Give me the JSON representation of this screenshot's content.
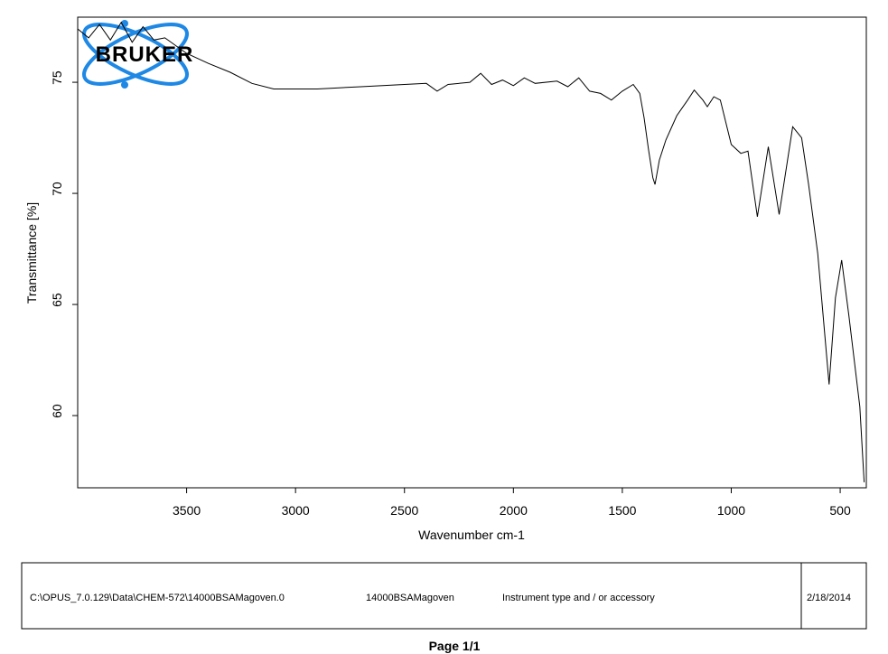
{
  "chart_data": {
    "type": "line",
    "x_label": "Wavenumber cm-1",
    "y_label": "Transmittance [%]",
    "xlim": [
      4000,
      380
    ],
    "ylim": [
      56.75,
      77.93
    ],
    "xticks": [
      3500,
      3000,
      2500,
      2000,
      1500,
      1000,
      500
    ],
    "yticks": [
      60,
      65,
      70,
      75
    ],
    "reverse_x": true,
    "grid": false,
    "series": [
      {
        "color": "#000000",
        "x": [
          4000,
          3950,
          3900,
          3850,
          3800,
          3750,
          3700,
          3650,
          3600,
          3500,
          3400,
          3300,
          3200,
          3100,
          3000,
          2900,
          2800,
          2700,
          2600,
          2500,
          2400,
          2350,
          2300,
          2200,
          2150,
          2100,
          2050,
          2000,
          1950,
          1900,
          1800,
          1750,
          1700,
          1650,
          1600,
          1550,
          1500,
          1450,
          1420,
          1400,
          1380,
          1360,
          1350,
          1330,
          1300,
          1250,
          1200,
          1170,
          1130,
          1110,
          1080,
          1050,
          1000,
          956,
          923,
          880,
          830,
          780,
          718,
          677,
          645,
          603,
          551,
          522,
          493,
          460,
          410,
          390
        ],
        "values": [
          77.4,
          77.0,
          77.6,
          76.9,
          77.7,
          76.8,
          77.5,
          76.9,
          77.0,
          76.3,
          75.85,
          75.45,
          74.95,
          74.7,
          74.7,
          74.7,
          74.75,
          74.8,
          74.85,
          74.9,
          74.95,
          74.6,
          74.9,
          75.0,
          75.4,
          74.9,
          75.1,
          74.85,
          75.2,
          74.95,
          75.05,
          74.8,
          75.2,
          74.6,
          74.5,
          74.2,
          74.6,
          74.9,
          74.5,
          73.4,
          72.0,
          70.7,
          70.4,
          71.5,
          72.4,
          73.5,
          74.2,
          74.65,
          74.2,
          73.9,
          74.35,
          74.2,
          72.2,
          71.8,
          71.9,
          68.95,
          72.1,
          69.05,
          73.0,
          72.5,
          70.4,
          67.3,
          61.4,
          65.3,
          67.0,
          64.5,
          60.4,
          57.0
        ]
      }
    ]
  },
  "logo": "BRUKER",
  "footer": {
    "file_path": "C:\\OPUS_7.0.129\\Data\\CHEM-572\\14000BSAMagoven.0",
    "sample": "14000BSAMagoven",
    "instrument": "Instrument type and / or accessory",
    "date": "2/18/2014",
    "page": "Page 1/1"
  }
}
